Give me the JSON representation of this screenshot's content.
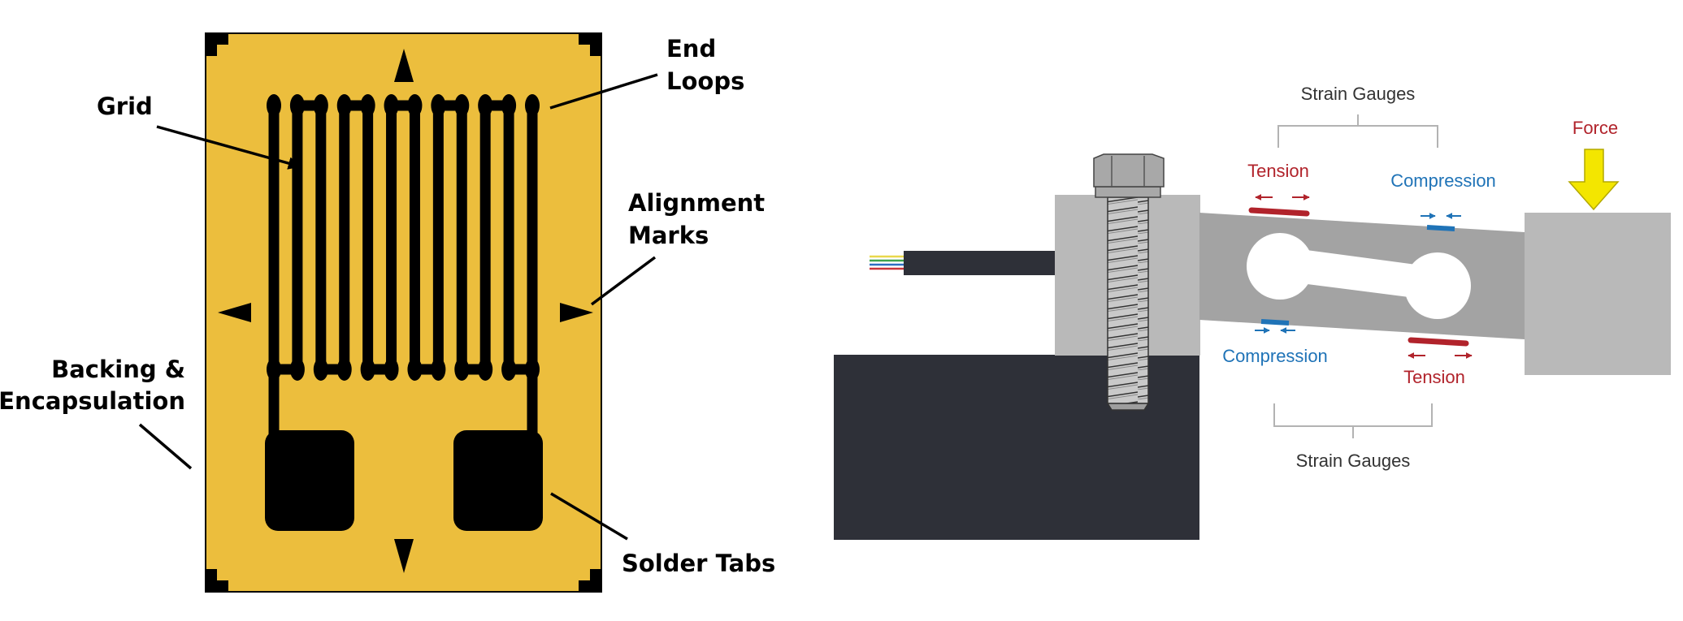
{
  "gauge_labels": {
    "grid": "Grid",
    "end_loops_1": "End",
    "end_loops_2": "Loops",
    "alignment_1": "Alignment",
    "alignment_2": "Marks",
    "backing_1": "Backing &",
    "backing_2": "Encapsulation",
    "solder_tabs": "Solder Tabs"
  },
  "loadcell_labels": {
    "strain_gauges_top": "Strain Gauges",
    "strain_gauges_bottom": "Strain Gauges",
    "tension_top": "Tension",
    "tension_bottom": "Tension",
    "compression_top": "Compression",
    "compression_bottom": "Compression",
    "force": "Force"
  },
  "colors": {
    "backing": "#ECBE3D",
    "ink": "#000000",
    "tension": "#B1232B",
    "compression": "#1F73B7",
    "force_arrow": "#F3E600",
    "block_light": "#B9B9B9",
    "beam": "#A3A3A3",
    "base": "#2E3038",
    "bracket": "#B3B3B3"
  }
}
